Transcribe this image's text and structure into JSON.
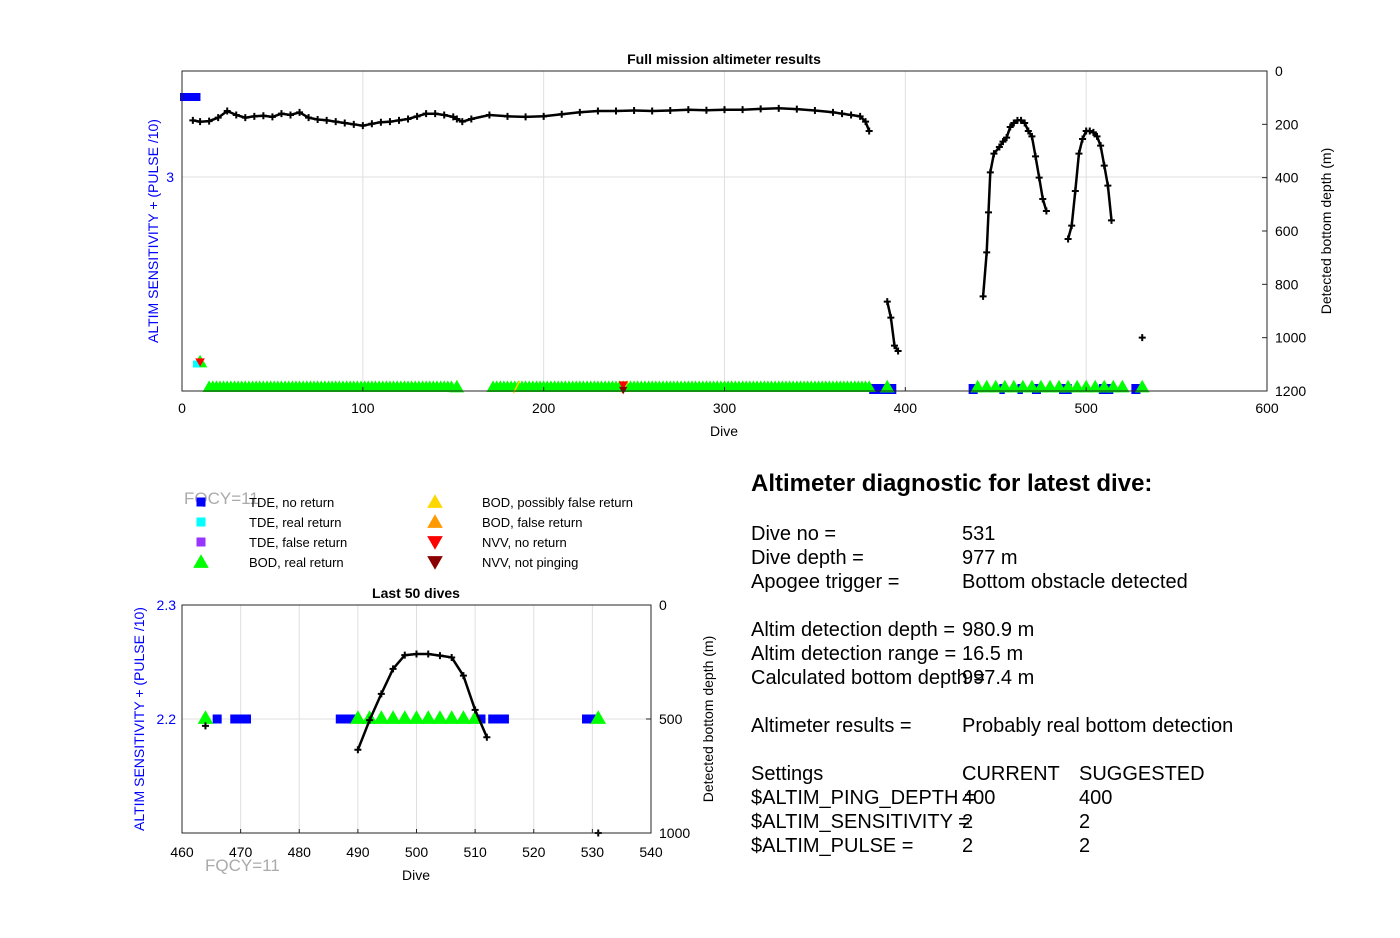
{
  "chart_data": [
    {
      "type": "scatter",
      "title": "Full mission altimeter results",
      "xlabel": "Dive",
      "ylabel": "ALTIM SENSITIVITY + (PULSE /10)",
      "y2label": "Detected bottom depth (m)",
      "xlim": [
        0,
        600
      ],
      "x_ticks": [
        0,
        100,
        200,
        300,
        400,
        500,
        600
      ],
      "y_ticks": [
        3
      ],
      "y2lim": [
        0,
        1200
      ],
      "y2_reversed": true,
      "y2_ticks": [
        0,
        200,
        400,
        600,
        800,
        1000,
        1200
      ],
      "grid": true,
      "bottom_depth_segments": [
        [
          [
            6,
            185
          ],
          [
            10,
            190
          ],
          [
            15,
            188
          ],
          [
            20,
            175
          ],
          [
            25,
            150
          ],
          [
            30,
            165
          ],
          [
            35,
            175
          ],
          [
            40,
            170
          ],
          [
            45,
            168
          ],
          [
            50,
            172
          ],
          [
            55,
            160
          ],
          [
            60,
            165
          ],
          [
            65,
            155
          ],
          [
            70,
            175
          ],
          [
            75,
            182
          ],
          [
            80,
            185
          ],
          [
            85,
            190
          ],
          [
            90,
            195
          ],
          [
            95,
            200
          ],
          [
            100,
            205
          ],
          [
            105,
            198
          ],
          [
            110,
            192
          ],
          [
            115,
            190
          ],
          [
            120,
            185
          ],
          [
            125,
            180
          ],
          [
            130,
            170
          ],
          [
            135,
            160
          ],
          [
            140,
            160
          ],
          [
            145,
            165
          ],
          [
            150,
            172
          ],
          [
            152,
            180
          ],
          [
            155,
            190
          ],
          [
            160,
            180
          ],
          [
            170,
            165
          ],
          [
            180,
            170
          ],
          [
            190,
            172
          ],
          [
            200,
            170
          ],
          [
            210,
            162
          ],
          [
            220,
            155
          ],
          [
            230,
            150
          ],
          [
            240,
            150
          ],
          [
            250,
            148
          ],
          [
            260,
            150
          ],
          [
            270,
            148
          ],
          [
            280,
            145
          ],
          [
            290,
            147
          ],
          [
            300,
            145
          ],
          [
            310,
            145
          ],
          [
            320,
            142
          ],
          [
            330,
            140
          ],
          [
            340,
            143
          ],
          [
            350,
            148
          ],
          [
            360,
            155
          ],
          [
            365,
            160
          ],
          [
            370,
            165
          ],
          [
            375,
            170
          ],
          [
            378,
            190
          ],
          [
            380,
            225
          ]
        ],
        [
          [
            390,
            865
          ],
          [
            392,
            925
          ],
          [
            394,
            1030
          ],
          [
            396,
            1050
          ]
        ],
        [
          [
            443,
            845
          ],
          [
            445,
            680
          ],
          [
            446,
            530
          ],
          [
            447,
            380
          ],
          [
            449,
            310
          ],
          [
            452,
            285
          ],
          [
            454,
            265
          ],
          [
            456,
            250
          ],
          [
            458,
            210
          ],
          [
            460,
            195
          ],
          [
            462,
            185
          ],
          [
            464,
            185
          ],
          [
            466,
            195
          ],
          [
            468,
            225
          ],
          [
            470,
            245
          ],
          [
            472,
            320
          ],
          [
            474,
            400
          ],
          [
            476,
            480
          ],
          [
            478,
            525
          ]
        ],
        [
          [
            490,
            630
          ],
          [
            492,
            580
          ],
          [
            494,
            450
          ],
          [
            496,
            310
          ],
          [
            498,
            255
          ],
          [
            500,
            225
          ],
          [
            502,
            225
          ],
          [
            504,
            230
          ],
          [
            506,
            245
          ],
          [
            508,
            280
          ],
          [
            510,
            355
          ],
          [
            512,
            430
          ],
          [
            514,
            560
          ]
        ],
        [
          [
            531,
            1000
          ]
        ]
      ],
      "bod_real_return_ranges": [
        [
          15,
          150
        ],
        [
          172,
          380
        ]
      ],
      "bod_real_return_points": [
        10,
        152,
        390,
        440,
        445,
        450,
        455,
        460,
        465,
        470,
        475,
        480,
        485,
        490,
        495,
        500,
        505,
        510,
        515,
        520,
        531
      ],
      "tde_no_return_ranges": [
        [
          380,
          395
        ],
        [
          435,
          440
        ],
        [
          452,
          455
        ],
        [
          462,
          465
        ],
        [
          470,
          475
        ],
        [
          485,
          492
        ],
        [
          507,
          515
        ],
        [
          525,
          530
        ]
      ],
      "tde_real_return_points": [
        8
      ],
      "nvv_no_return_points": [
        10,
        244
      ],
      "nvv_not_pinging_points": [
        244
      ],
      "bod_possibly_false_points": [
        185,
        245
      ],
      "top_left_marker_x": [
        0,
        8
      ]
    },
    {
      "type": "scatter",
      "title": "Last 50 dives",
      "xlabel": "Dive",
      "ylabel": "ALTIM SENSITIVITY + (PULSE /10)",
      "y2label": "Detected bottom depth (m)",
      "xlim": [
        460,
        540
      ],
      "x_ticks": [
        460,
        470,
        480,
        490,
        500,
        510,
        520,
        530,
        540
      ],
      "ylim": [
        2.1,
        2.3
      ],
      "y_ticks": [
        2.2,
        2.3
      ],
      "y2lim": [
        0,
        1000
      ],
      "y2_reversed": true,
      "y2_ticks": [
        0,
        500,
        1000
      ],
      "grid": true,
      "bottom_depth_segments": [
        [
          [
            464,
            530
          ]
        ],
        [
          [
            490,
            635
          ],
          [
            492,
            505
          ],
          [
            494,
            390
          ],
          [
            496,
            280
          ],
          [
            498,
            220
          ],
          [
            500,
            215
          ],
          [
            502,
            215
          ],
          [
            504,
            222
          ],
          [
            506,
            230
          ],
          [
            508,
            310
          ],
          [
            510,
            460
          ],
          [
            512,
            580
          ]
        ],
        [
          [
            531,
            1000
          ]
        ]
      ],
      "bod_real_return_points": [
        464,
        490,
        492,
        494,
        496,
        498,
        500,
        502,
        504,
        506,
        508,
        510,
        531
      ],
      "tde_no_return_points": [
        466,
        469,
        470,
        471,
        487,
        488,
        489,
        511,
        513,
        514,
        515,
        529,
        530
      ],
      "fqcy_label": "FQCY=11"
    }
  ],
  "legend": {
    "fqcy_label": "FQCY=11",
    "entries": [
      {
        "label": "TDE, no return",
        "color": "#0000ff",
        "shape": "square"
      },
      {
        "label": "TDE, real return",
        "color": "#00ffff",
        "shape": "square"
      },
      {
        "label": "TDE, false return",
        "color": "#9933ff",
        "shape": "square"
      },
      {
        "label": "BOD, real return",
        "color": "#00ff00",
        "shape": "triangle-up"
      },
      {
        "label": "BOD, possibly false return",
        "color": "#ffd700",
        "shape": "triangle-up"
      },
      {
        "label": "BOD, false return",
        "color": "#ff9900",
        "shape": "triangle-up"
      },
      {
        "label": "NVV, no return",
        "color": "#ff0000",
        "shape": "triangle-down"
      },
      {
        "label": "NVV, not pinging",
        "color": "#8b0000",
        "shape": "triangle-down"
      }
    ]
  },
  "diagnostic": {
    "title": "Altimeter diagnostic for latest dive:",
    "rows": [
      {
        "label": "Dive no =",
        "value": "531"
      },
      {
        "label": "Dive depth =",
        "value": "977 m"
      },
      {
        "label": "Apogee trigger =",
        "value": "Bottom obstacle detected"
      },
      {
        "label": "Altim detection depth =",
        "value": "980.9 m"
      },
      {
        "label": "Altim detection range =",
        "value": "16.5 m"
      },
      {
        "label": "Calculated bottom depth =",
        "value": "997.4 m"
      },
      {
        "label": "Altimeter results =",
        "value": "Probably real bottom detection"
      }
    ],
    "settings_header": {
      "label": "Settings",
      "current": "CURRENT",
      "suggested": "SUGGESTED"
    },
    "settings": [
      {
        "label": "$ALTIM_PING_DEPTH =",
        "current": "400",
        "suggested": "400"
      },
      {
        "label": "$ALTIM_SENSITIVITY =",
        "current": "2",
        "suggested": "2"
      },
      {
        "label": "$ALTIM_PULSE =",
        "current": "2",
        "suggested": "2"
      }
    ]
  },
  "colors": {
    "axis_label_blue": "#0000ff",
    "fqcy_gray": "#aaaaaa",
    "grid": "#dfdfdf",
    "depth_line": "#000000"
  }
}
